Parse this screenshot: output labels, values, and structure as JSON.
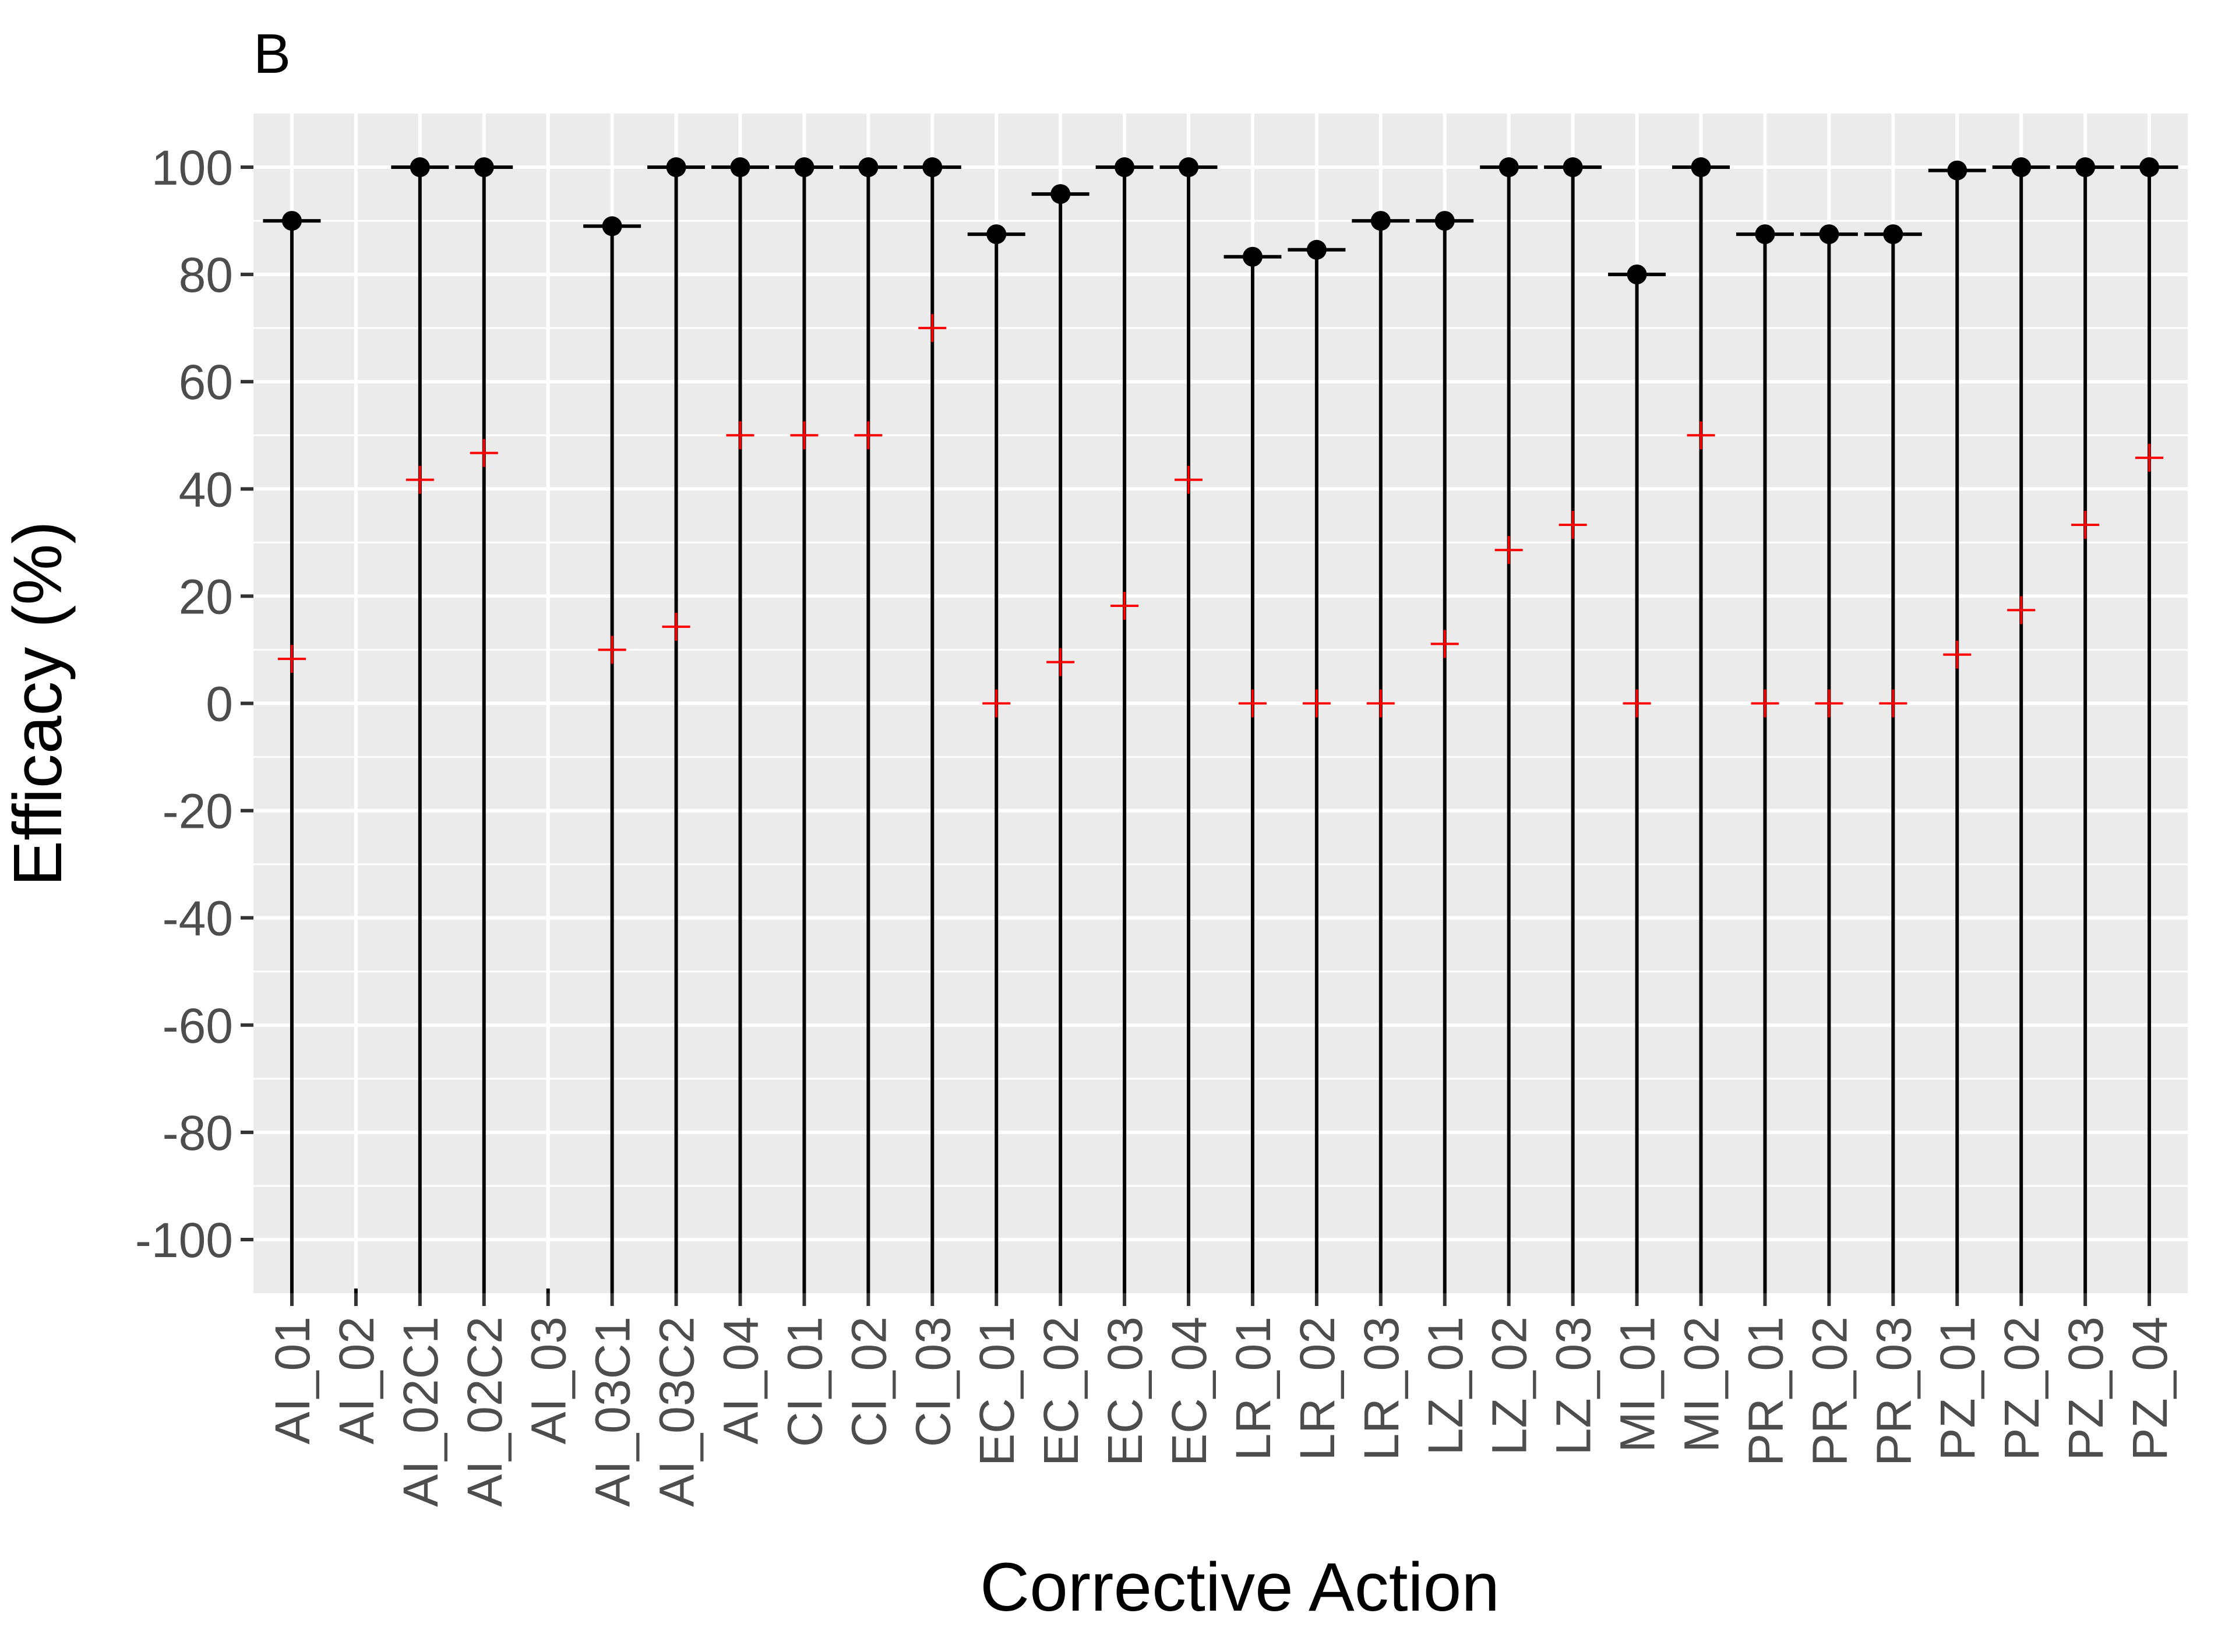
{
  "chart_data": {
    "type": "errorbar",
    "panel_label": "B",
    "xlabel": "Corrective Action",
    "ylabel": "Efficacy (%)",
    "ylim": [
      -110,
      110
    ],
    "yticks": [
      -100,
      -80,
      -60,
      -40,
      -20,
      0,
      20,
      40,
      60,
      80,
      100
    ],
    "grid": true,
    "background": "#ebebeb",
    "gridline_color": "#ffffff",
    "point_color": "#000000",
    "cross_color": "#ff0000",
    "categories": [
      "AI_01",
      "AI_02",
      "AI_02C1",
      "AI_02C2",
      "AI_03",
      "AI_03C1",
      "AI_03C2",
      "AI_04",
      "CI_01",
      "CI_02",
      "CI_03",
      "EC_01",
      "EC_02",
      "EC_03",
      "EC_04",
      "LR_01",
      "LR_02",
      "LR_03",
      "LZ_01",
      "LZ_02",
      "LZ_03",
      "MI_01",
      "MI_02",
      "PR_01",
      "PR_02",
      "PR_03",
      "PZ_01",
      "PZ_02",
      "PZ_03",
      "PZ_04"
    ],
    "point": [
      90,
      null,
      100,
      100,
      null,
      89,
      100,
      100,
      100,
      100,
      100,
      87.5,
      95,
      100,
      100,
      83.3,
      84.6,
      90,
      90,
      100,
      100,
      80,
      100,
      87.5,
      87.5,
      87.5,
      99.4,
      100,
      100,
      100
    ],
    "cross": [
      8.3,
      null,
      41.7,
      46.7,
      null,
      10,
      14.3,
      50,
      50,
      50,
      70,
      0,
      7.7,
      18.2,
      41.7,
      0,
      0,
      0,
      11.1,
      28.6,
      33.3,
      0,
      50,
      0,
      0,
      0,
      9.1,
      17.4,
      33.3,
      45.8
    ],
    "upper": [
      90,
      null,
      100,
      100,
      null,
      89,
      100,
      100,
      100,
      100,
      100,
      87.5,
      95,
      100,
      100,
      83.3,
      84.6,
      90,
      90,
      100,
      100,
      80,
      100,
      87.5,
      87.5,
      87.5,
      99.4,
      100,
      100,
      100
    ],
    "lower": [
      -110,
      null,
      -110,
      -110,
      null,
      -110,
      -110,
      -110,
      -110,
      -110,
      -110,
      -110,
      -110,
      -110,
      -110,
      -110,
      -110,
      -110,
      -110,
      -110,
      -110,
      -110,
      -110,
      -110,
      -110,
      -110,
      -110,
      -110,
      -110,
      -110
    ]
  }
}
